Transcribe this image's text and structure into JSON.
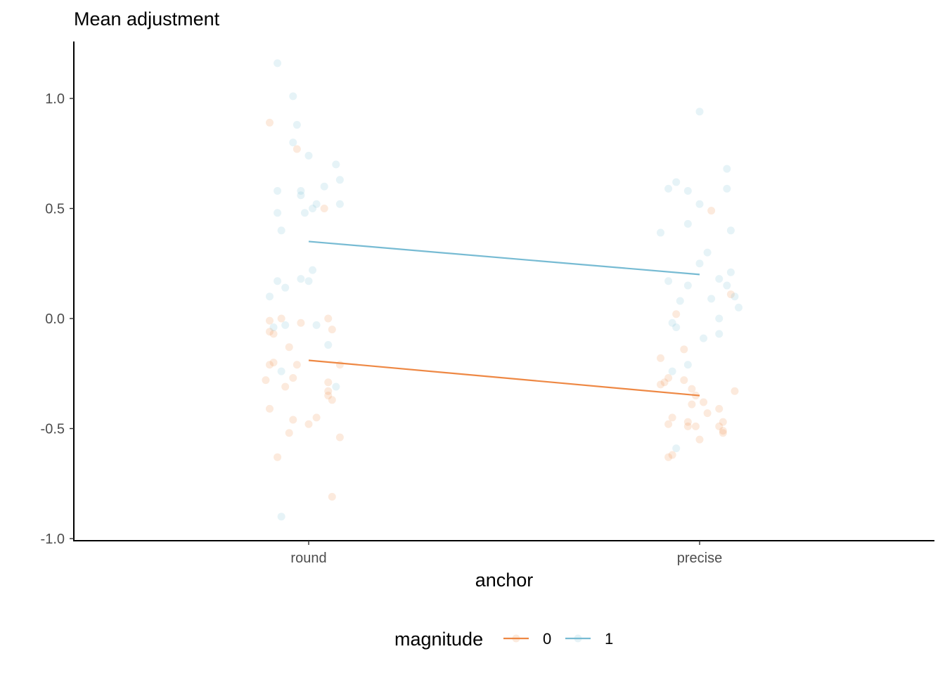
{
  "chart_data": {
    "type": "scatter",
    "title": "Mean adjustment",
    "xlabel": "anchor",
    "ylabel": "",
    "categories": [
      "round",
      "precise"
    ],
    "ylim": [
      -1.0,
      1.25
    ],
    "yticks": [
      "-1.0",
      "-0.5",
      "0.0",
      "0.5",
      "1.0"
    ],
    "grid": false,
    "legend": {
      "title": "magnitude",
      "placement": "bottom",
      "entries": [
        {
          "label": "0",
          "color": "#EE8844"
        },
        {
          "label": "1",
          "color": "#77BBD3"
        }
      ]
    },
    "series": [
      {
        "name": "0",
        "color": "#EE8844",
        "mean_line": {
          "round": -0.19,
          "precise": -0.35
        },
        "points": [
          {
            "category": "round",
            "jitter": -0.1,
            "value": 0.89
          },
          {
            "category": "round",
            "jitter": -0.03,
            "value": 0.77
          },
          {
            "category": "round",
            "jitter": 0.04,
            "value": 0.5
          },
          {
            "category": "round",
            "jitter": -0.1,
            "value": -0.01
          },
          {
            "category": "round",
            "jitter": -0.07,
            "value": 0.0
          },
          {
            "category": "round",
            "jitter": -0.02,
            "value": -0.02
          },
          {
            "category": "round",
            "jitter": 0.05,
            "value": 0.0
          },
          {
            "category": "round",
            "jitter": 0.06,
            "value": -0.05
          },
          {
            "category": "round",
            "jitter": -0.09,
            "value": -0.07
          },
          {
            "category": "round",
            "jitter": -0.1,
            "value": -0.06
          },
          {
            "category": "round",
            "jitter": -0.05,
            "value": -0.13
          },
          {
            "category": "round",
            "jitter": -0.1,
            "value": -0.21
          },
          {
            "category": "round",
            "jitter": -0.09,
            "value": -0.2
          },
          {
            "category": "round",
            "jitter": -0.03,
            "value": -0.21
          },
          {
            "category": "round",
            "jitter": 0.08,
            "value": -0.21
          },
          {
            "category": "round",
            "jitter": -0.11,
            "value": -0.28
          },
          {
            "category": "round",
            "jitter": -0.04,
            "value": -0.27
          },
          {
            "category": "round",
            "jitter": -0.06,
            "value": -0.31
          },
          {
            "category": "round",
            "jitter": 0.05,
            "value": -0.29
          },
          {
            "category": "round",
            "jitter": 0.05,
            "value": -0.33
          },
          {
            "category": "round",
            "jitter": 0.05,
            "value": -0.35
          },
          {
            "category": "round",
            "jitter": 0.06,
            "value": -0.37
          },
          {
            "category": "round",
            "jitter": -0.1,
            "value": -0.41
          },
          {
            "category": "round",
            "jitter": -0.04,
            "value": -0.46
          },
          {
            "category": "round",
            "jitter": 0.02,
            "value": -0.45
          },
          {
            "category": "round",
            "jitter": 0.0,
            "value": -0.48
          },
          {
            "category": "round",
            "jitter": -0.05,
            "value": -0.52
          },
          {
            "category": "round",
            "jitter": 0.08,
            "value": -0.54
          },
          {
            "category": "round",
            "jitter": -0.08,
            "value": -0.63
          },
          {
            "category": "round",
            "jitter": 0.06,
            "value": -0.81
          },
          {
            "category": "precise",
            "jitter": 0.03,
            "value": 0.49
          },
          {
            "category": "precise",
            "jitter": -0.06,
            "value": 0.02
          },
          {
            "category": "precise",
            "jitter": 0.08,
            "value": 0.11
          },
          {
            "category": "precise",
            "jitter": -0.04,
            "value": -0.14
          },
          {
            "category": "precise",
            "jitter": -0.1,
            "value": -0.18
          },
          {
            "category": "precise",
            "jitter": -0.09,
            "value": -0.29
          },
          {
            "category": "precise",
            "jitter": -0.1,
            "value": -0.3
          },
          {
            "category": "precise",
            "jitter": -0.04,
            "value": -0.28
          },
          {
            "category": "precise",
            "jitter": -0.08,
            "value": -0.27
          },
          {
            "category": "precise",
            "jitter": -0.02,
            "value": -0.32
          },
          {
            "category": "precise",
            "jitter": 0.09,
            "value": -0.33
          },
          {
            "category": "precise",
            "jitter": -0.01,
            "value": -0.35
          },
          {
            "category": "precise",
            "jitter": 0.01,
            "value": -0.38
          },
          {
            "category": "precise",
            "jitter": -0.02,
            "value": -0.39
          },
          {
            "category": "precise",
            "jitter": 0.05,
            "value": -0.41
          },
          {
            "category": "precise",
            "jitter": 0.02,
            "value": -0.43
          },
          {
            "category": "precise",
            "jitter": -0.07,
            "value": -0.45
          },
          {
            "category": "precise",
            "jitter": -0.03,
            "value": -0.47
          },
          {
            "category": "precise",
            "jitter": -0.08,
            "value": -0.48
          },
          {
            "category": "precise",
            "jitter": -0.03,
            "value": -0.49
          },
          {
            "category": "precise",
            "jitter": -0.01,
            "value": -0.49
          },
          {
            "category": "precise",
            "jitter": 0.05,
            "value": -0.49
          },
          {
            "category": "precise",
            "jitter": 0.06,
            "value": -0.47
          },
          {
            "category": "precise",
            "jitter": 0.06,
            "value": -0.51
          },
          {
            "category": "precise",
            "jitter": 0.06,
            "value": -0.52
          },
          {
            "category": "precise",
            "jitter": 0.0,
            "value": -0.55
          },
          {
            "category": "precise",
            "jitter": -0.08,
            "value": -0.63
          },
          {
            "category": "precise",
            "jitter": -0.07,
            "value": -0.62
          }
        ]
      },
      {
        "name": "1",
        "color": "#77BBD3",
        "mean_line": {
          "round": 0.35,
          "precise": 0.2
        },
        "points": [
          {
            "category": "round",
            "jitter": -0.08,
            "value": 1.16
          },
          {
            "category": "round",
            "jitter": -0.04,
            "value": 1.01
          },
          {
            "category": "round",
            "jitter": -0.03,
            "value": 0.88
          },
          {
            "category": "round",
            "jitter": -0.04,
            "value": 0.8
          },
          {
            "category": "round",
            "jitter": 0.0,
            "value": 0.74
          },
          {
            "category": "round",
            "jitter": 0.07,
            "value": 0.7
          },
          {
            "category": "round",
            "jitter": 0.08,
            "value": 0.63
          },
          {
            "category": "round",
            "jitter": 0.04,
            "value": 0.6
          },
          {
            "category": "round",
            "jitter": -0.08,
            "value": 0.58
          },
          {
            "category": "round",
            "jitter": -0.02,
            "value": 0.58
          },
          {
            "category": "round",
            "jitter": -0.02,
            "value": 0.56
          },
          {
            "category": "round",
            "jitter": 0.08,
            "value": 0.52
          },
          {
            "category": "round",
            "jitter": 0.02,
            "value": 0.52
          },
          {
            "category": "round",
            "jitter": 0.01,
            "value": 0.5
          },
          {
            "category": "round",
            "jitter": -0.08,
            "value": 0.48
          },
          {
            "category": "round",
            "jitter": -0.01,
            "value": 0.48
          },
          {
            "category": "round",
            "jitter": -0.07,
            "value": 0.4
          },
          {
            "category": "round",
            "jitter": 0.01,
            "value": 0.22
          },
          {
            "category": "round",
            "jitter": -0.02,
            "value": 0.18
          },
          {
            "category": "round",
            "jitter": 0.0,
            "value": 0.17
          },
          {
            "category": "round",
            "jitter": -0.08,
            "value": 0.17
          },
          {
            "category": "round",
            "jitter": -0.06,
            "value": 0.14
          },
          {
            "category": "round",
            "jitter": -0.1,
            "value": 0.1
          },
          {
            "category": "round",
            "jitter": -0.06,
            "value": -0.03
          },
          {
            "category": "round",
            "jitter": 0.02,
            "value": -0.03
          },
          {
            "category": "round",
            "jitter": -0.09,
            "value": -0.04
          },
          {
            "category": "round",
            "jitter": 0.05,
            "value": -0.12
          },
          {
            "category": "round",
            "jitter": -0.07,
            "value": -0.24
          },
          {
            "category": "round",
            "jitter": 0.07,
            "value": -0.31
          },
          {
            "category": "round",
            "jitter": -0.07,
            "value": -0.9
          },
          {
            "category": "precise",
            "jitter": 0.0,
            "value": 0.94
          },
          {
            "category": "precise",
            "jitter": 0.07,
            "value": 0.68
          },
          {
            "category": "precise",
            "jitter": -0.06,
            "value": 0.62
          },
          {
            "category": "precise",
            "jitter": -0.08,
            "value": 0.59
          },
          {
            "category": "precise",
            "jitter": -0.03,
            "value": 0.58
          },
          {
            "category": "precise",
            "jitter": 0.07,
            "value": 0.59
          },
          {
            "category": "precise",
            "jitter": 0.0,
            "value": 0.52
          },
          {
            "category": "precise",
            "jitter": -0.03,
            "value": 0.43
          },
          {
            "category": "precise",
            "jitter": 0.08,
            "value": 0.4
          },
          {
            "category": "precise",
            "jitter": -0.1,
            "value": 0.39
          },
          {
            "category": "precise",
            "jitter": 0.02,
            "value": 0.3
          },
          {
            "category": "precise",
            "jitter": 0.0,
            "value": 0.25
          },
          {
            "category": "precise",
            "jitter": 0.08,
            "value": 0.21
          },
          {
            "category": "precise",
            "jitter": 0.05,
            "value": 0.18
          },
          {
            "category": "precise",
            "jitter": -0.08,
            "value": 0.17
          },
          {
            "category": "precise",
            "jitter": -0.03,
            "value": 0.15
          },
          {
            "category": "precise",
            "jitter": 0.07,
            "value": 0.15
          },
          {
            "category": "precise",
            "jitter": 0.09,
            "value": 0.1
          },
          {
            "category": "precise",
            "jitter": 0.03,
            "value": 0.09
          },
          {
            "category": "precise",
            "jitter": -0.05,
            "value": 0.08
          },
          {
            "category": "precise",
            "jitter": 0.1,
            "value": 0.05
          },
          {
            "category": "precise",
            "jitter": 0.05,
            "value": 0.0
          },
          {
            "category": "precise",
            "jitter": -0.07,
            "value": -0.02
          },
          {
            "category": "precise",
            "jitter": -0.06,
            "value": -0.04
          },
          {
            "category": "precise",
            "jitter": 0.05,
            "value": -0.07
          },
          {
            "category": "precise",
            "jitter": 0.01,
            "value": -0.09
          },
          {
            "category": "precise",
            "jitter": -0.03,
            "value": -0.21
          },
          {
            "category": "precise",
            "jitter": -0.07,
            "value": -0.24
          },
          {
            "category": "precise",
            "jitter": -0.06,
            "value": -0.59
          }
        ]
      }
    ]
  }
}
